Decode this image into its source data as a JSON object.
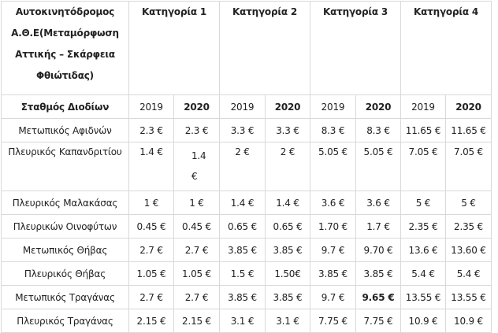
{
  "table": {
    "title": "Αυτοκινητόδρομος Α.Θ.Ε(Μεταμόρφωση Αττικής – Σκάρφεια Φθιώτιδας)",
    "categories": [
      "Κατηγορία  1",
      "Κατηγορία 2",
      "Κατηγορία 3",
      "Κατηγορία 4"
    ],
    "station_header": "Σταθμός Διοδίων",
    "years": [
      "2019",
      "2020",
      "2019",
      "2020",
      "2019",
      "2020",
      "2019",
      "2020"
    ],
    "rows": [
      {
        "name": "Μετωπικός Αφιδνών",
        "values": [
          "2.3 €",
          "2.3 €",
          "3.3 €",
          "3.3 €",
          "8.3 €",
          "8.3 €",
          "11.65 €",
          "11.65 €"
        ]
      },
      {
        "name": "Πλευρικός Καπανδριτίου",
        "values": [
          "1.4 €",
          "1.4 €",
          "2 €",
          "2 €",
          "5.05 €",
          "5.05 €",
          "7.05 €",
          "7.05 €"
        ]
      },
      {
        "name": "Πλευρικός Μαλακάσας",
        "values": [
          "1 €",
          "1 €",
          "1.4 €",
          "1.4 €",
          "3.6 €",
          "3.6 €",
          "5 €",
          "5 €"
        ]
      },
      {
        "name": "Πλευρικών Οινοφύτων",
        "values": [
          "0.45 €",
          "0.45 €",
          "0.65 €",
          "0.65 €",
          "1.70 €",
          "1.7 €",
          "2.35 €",
          "2.35 €"
        ]
      },
      {
        "name": "Μετωπικός Θήβας",
        "values": [
          "2.7 €",
          "2.7 €",
          "3.85 €",
          "3.85 €",
          "9.7 €",
          "9.70 €",
          "13.6 €",
          "13.60 €"
        ]
      },
      {
        "name": "Πλευρικός Θήβας",
        "values": [
          "1.05 €",
          "1.05 €",
          "1.5 €",
          "1.50€",
          "3.85 €",
          "3.85 €",
          "5.4 €",
          "5.4 €"
        ]
      },
      {
        "name": "Μετωπικός Τραγάνας",
        "values": [
          "2.7 €",
          "2.7 €",
          "3.85 €",
          "3.85 €",
          "9.7 €",
          "9.65 €",
          "13.55 €",
          "13.55 €"
        ]
      },
      {
        "name": "Πλευρικός Τραγάνας",
        "values": [
          "2.15 €",
          "2.15 €",
          "3.1 €",
          "3.1 €",
          "7.75 €",
          "7.75 €",
          "10.9 €",
          "10.9 €"
        ]
      }
    ]
  }
}
